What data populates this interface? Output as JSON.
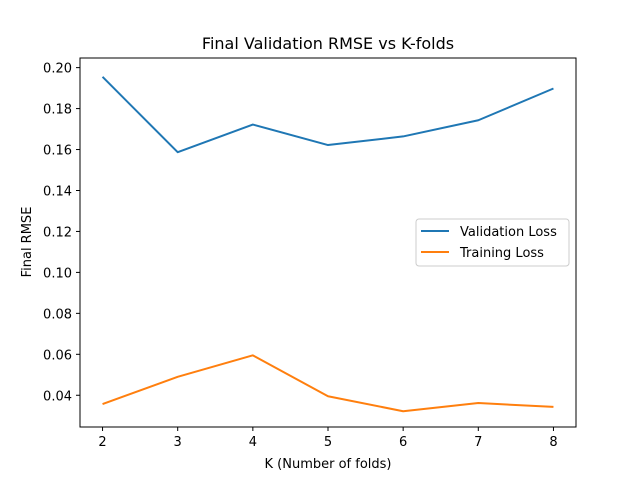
{
  "chart_data": {
    "type": "line",
    "title": "Final Validation RMSE vs K-folds",
    "xlabel": "K (Number of folds)",
    "ylabel": "Final RMSE",
    "x": [
      2,
      3,
      4,
      5,
      6,
      7,
      8
    ],
    "xticks": [
      "2",
      "3",
      "4",
      "5",
      "6",
      "7",
      "8"
    ],
    "yticks": [
      "0.04",
      "0.06",
      "0.08",
      "0.10",
      "0.12",
      "0.14",
      "0.16",
      "0.18",
      "0.20"
    ],
    "ylim": [
      0.0245,
      0.2047
    ],
    "xlim": [
      1.7,
      8.3
    ],
    "grid": false,
    "legend_position": "center-right",
    "series": [
      {
        "name": "Validation Loss",
        "color": "#1f77b4",
        "values": [
          0.1955,
          0.1587,
          0.1722,
          0.1622,
          0.1664,
          0.1743,
          0.1898
        ]
      },
      {
        "name": "Training Loss",
        "color": "#ff7f0e",
        "values": [
          0.0357,
          0.049,
          0.0595,
          0.0395,
          0.0322,
          0.0362,
          0.0343
        ]
      }
    ]
  }
}
